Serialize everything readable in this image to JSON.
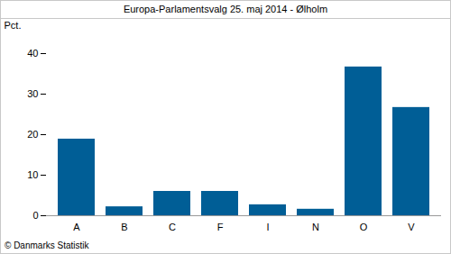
{
  "chart_data": {
    "type": "bar",
    "title": "Europa-Parlamentsvalg 25. maj 2014 - Ølholm",
    "y_label": "Pct.",
    "caption": "© Danmarks Statistik",
    "categories": [
      "A",
      "B",
      "C",
      "F",
      "I",
      "N",
      "O",
      "V"
    ],
    "values": [
      18.9,
      2.2,
      6.0,
      6.0,
      2.7,
      1.6,
      36.7,
      26.7
    ],
    "color": "#005e96",
    "ylim": [
      0,
      40
    ],
    "yticks": [
      0,
      10,
      20,
      30,
      40
    ],
    "grid": false
  }
}
